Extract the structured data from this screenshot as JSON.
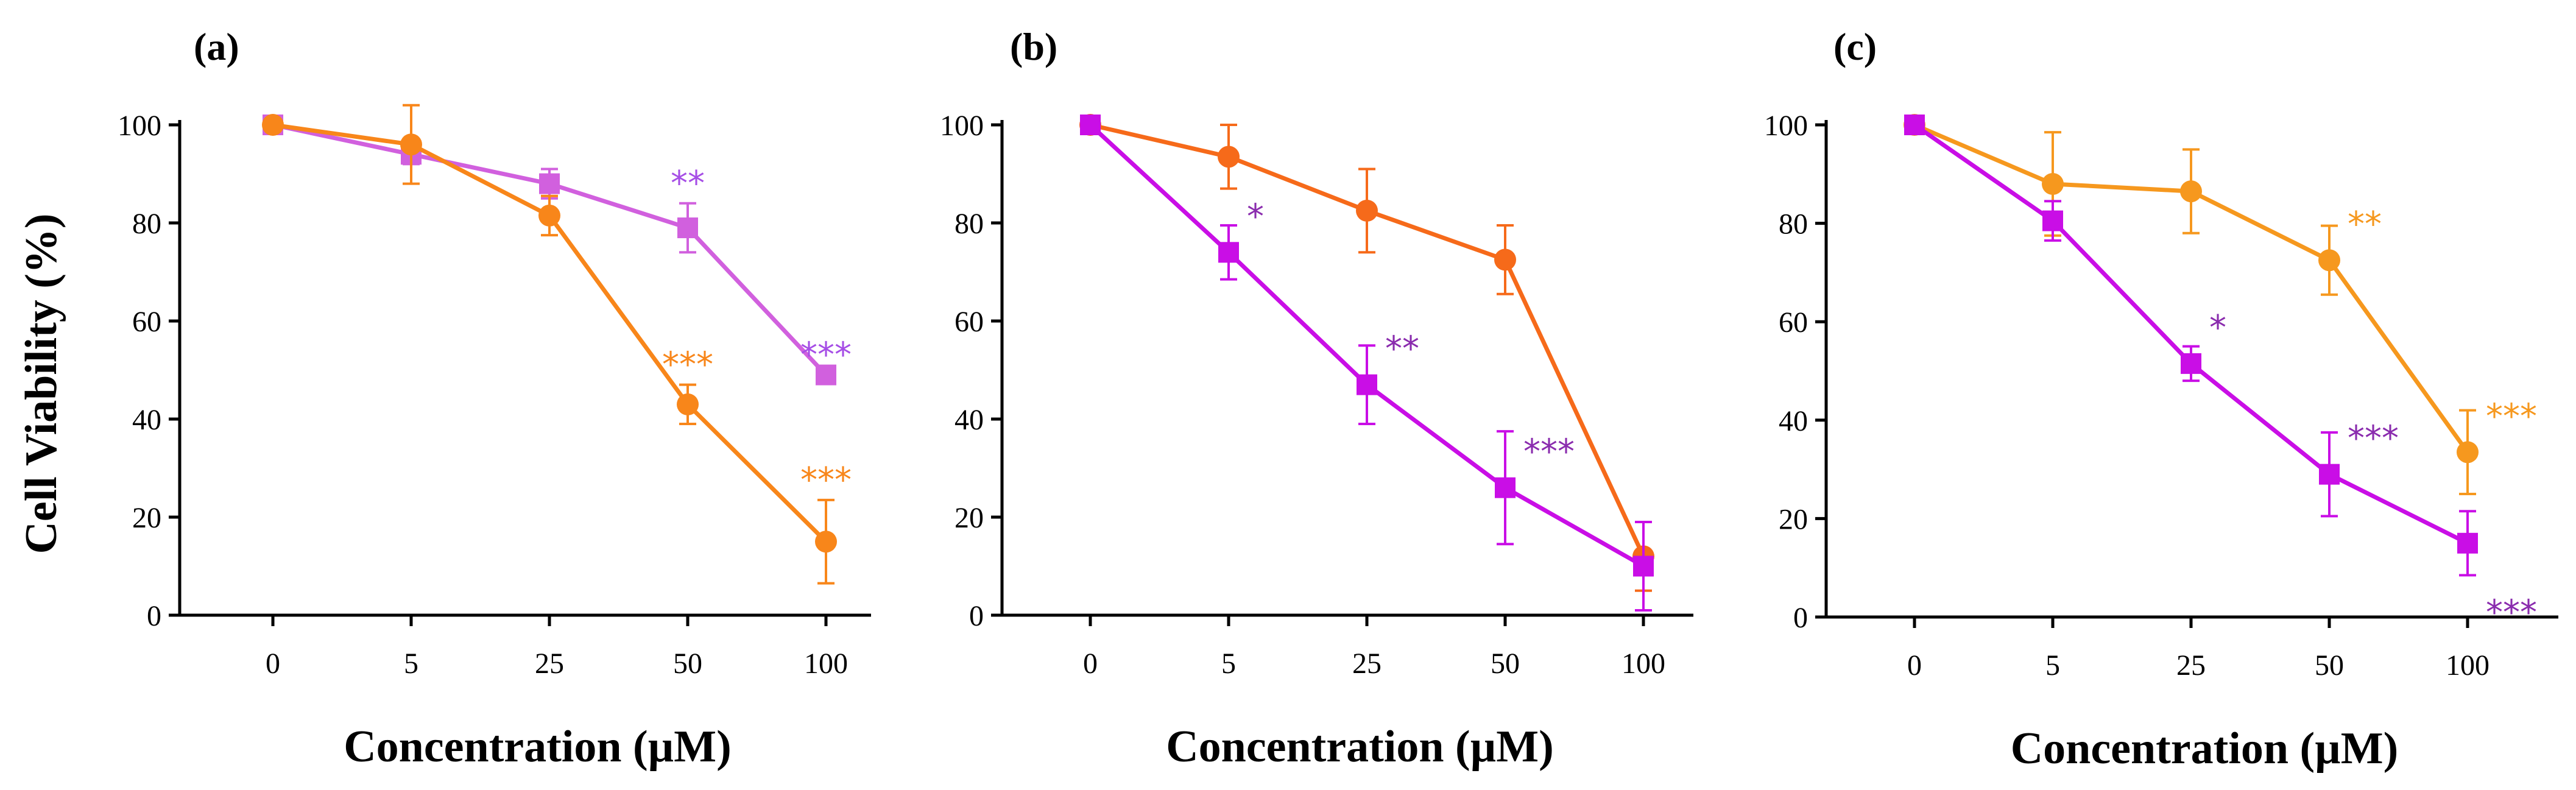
{
  "figure": {
    "ylabel": "Cell Viability (%)"
  },
  "chart_data": [
    {
      "type": "line",
      "panel_label": "(a)",
      "categories": [
        "0",
        "5",
        "25",
        "50",
        "100"
      ],
      "xlabel": "Concentration (µM)",
      "ylabel": "Cell Viability (%)",
      "ylim": [
        0,
        100
      ],
      "yticks": [
        0,
        20,
        40,
        60,
        80,
        100
      ],
      "series": [
        {
          "name": "magenta-square",
          "marker": "square",
          "color": "#d160de",
          "values": [
            100,
            94,
            88,
            79,
            49
          ],
          "errors": [
            1,
            2,
            3,
            5,
            0
          ],
          "annotations": [
            {
              "index": 3,
              "text": "**",
              "color": "#a64ee6",
              "pos": "above"
            },
            {
              "index": 4,
              "text": "***",
              "color": "#a64ee6",
              "pos": "above"
            }
          ]
        },
        {
          "name": "orange-circle",
          "marker": "circle",
          "color": "#f8861a",
          "values": [
            100,
            96,
            81.5,
            43,
            15
          ],
          "errors": [
            1,
            8,
            4,
            4,
            8.5
          ],
          "annotations": [
            {
              "index": 3,
              "text": "***",
              "color": "#f8861a",
              "pos": "above"
            },
            {
              "index": 4,
              "text": "***",
              "color": "#f8861a",
              "pos": "above"
            }
          ]
        }
      ]
    },
    {
      "type": "line",
      "panel_label": "(b)",
      "categories": [
        "0",
        "5",
        "25",
        "50",
        "100"
      ],
      "xlabel": "Concentration (µM)",
      "ylabel": "",
      "ylim": [
        0,
        100
      ],
      "yticks": [
        0,
        20,
        40,
        60,
        80,
        100
      ],
      "series": [
        {
          "name": "orange-circle",
          "marker": "circle",
          "color": "#f66a1a",
          "values": [
            100,
            93.5,
            82.5,
            72.5,
            12
          ],
          "errors": [
            1,
            6.5,
            8.5,
            7,
            7
          ],
          "annotations": []
        },
        {
          "name": "magenta-square",
          "marker": "square",
          "color": "#c90ee6",
          "values": [
            100,
            74,
            47,
            26,
            10
          ],
          "errors": [
            1,
            5.5,
            8,
            11.5,
            9
          ],
          "annotations": [
            {
              "index": 1,
              "text": "*",
              "color": "#8a2cae",
              "pos": "upper-right"
            },
            {
              "index": 2,
              "text": "**",
              "color": "#8a2cae",
              "pos": "upper-right"
            },
            {
              "index": 3,
              "text": "***",
              "color": "#8a2cae",
              "pos": "upper-right"
            }
          ]
        }
      ]
    },
    {
      "type": "line",
      "panel_label": "(c)",
      "categories": [
        "0",
        "5",
        "25",
        "50",
        "100"
      ],
      "xlabel": "Concentration (µM)",
      "ylabel": "",
      "ylim": [
        0,
        100
      ],
      "yticks": [
        0,
        20,
        40,
        60,
        80,
        100
      ],
      "series": [
        {
          "name": "orange-circle",
          "marker": "circle",
          "color": "#f6981e",
          "values": [
            100,
            88,
            86.5,
            72.5,
            33.5
          ],
          "errors": [
            1,
            10.5,
            8.5,
            7,
            8.5
          ],
          "annotations": [
            {
              "index": 3,
              "text": "**",
              "color": "#f6981e",
              "pos": "upper-right"
            },
            {
              "index": 4,
              "text": "***",
              "color": "#f6981e",
              "pos": "upper-right"
            }
          ]
        },
        {
          "name": "magenta-square",
          "marker": "square",
          "color": "#c90ee6",
          "values": [
            100,
            80.5,
            51.5,
            29,
            15
          ],
          "errors": [
            1,
            4,
            3.5,
            8.5,
            6.5
          ],
          "annotations": [
            {
              "index": 2,
              "text": "*",
              "color": "#8a2cae",
              "pos": "upper-right"
            },
            {
              "index": 3,
              "text": "***",
              "color": "#8a2cae",
              "pos": "upper-right"
            },
            {
              "index": 4,
              "text": "***",
              "color": "#8a2cae",
              "pos": "lower-right"
            }
          ]
        }
      ]
    }
  ]
}
